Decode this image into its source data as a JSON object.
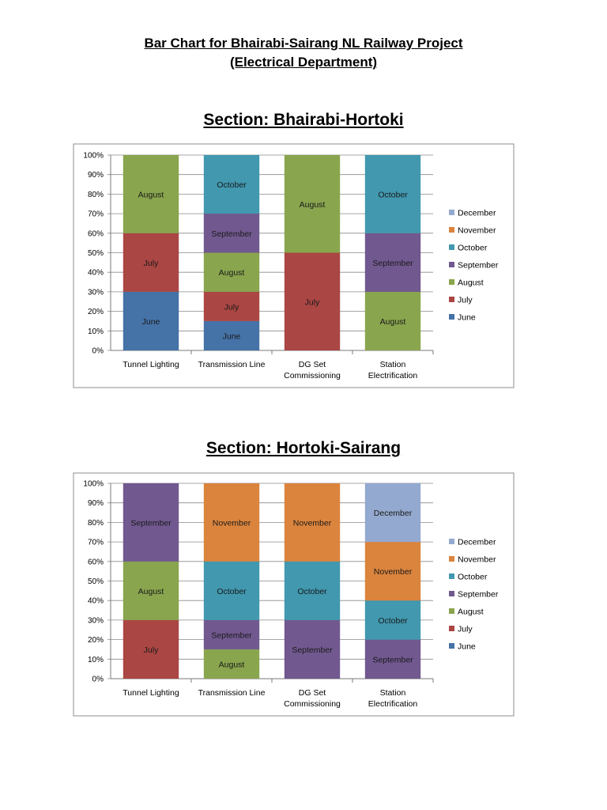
{
  "doc": {
    "title_line1": "Bar Chart for Bhairabi-Sairang NL Railway Project",
    "title_line2": "(Electrical Department)"
  },
  "month_colors": {
    "June": "#4572a7",
    "July": "#aa4643",
    "August": "#89a54e",
    "September": "#71588f",
    "October": "#4198af",
    "November": "#db843d",
    "December": "#93a9cf"
  },
  "chart_data": [
    {
      "type": "bar",
      "stacked": true,
      "title": "Section: Bhairabi-Hortoki",
      "categories": [
        "Tunnel Lighting",
        "Transmission Line",
        "DG Set Commissioning",
        "Station Electrification"
      ],
      "category_lines": [
        [
          "Tunnel Lighting"
        ],
        [
          "Transmission Line"
        ],
        [
          "DG Set",
          "Commissioning"
        ],
        [
          "Station",
          "Electrification"
        ]
      ],
      "yticks": [
        "0%",
        "10%",
        "20%",
        "30%",
        "40%",
        "50%",
        "60%",
        "70%",
        "80%",
        "90%",
        "100%"
      ],
      "ylim": [
        0,
        100
      ],
      "legend": [
        "December",
        "November",
        "October",
        "September",
        "August",
        "July",
        "June"
      ],
      "legend_position": "right",
      "segments": [
        [
          {
            "month": "June",
            "from": 0,
            "to": 30
          },
          {
            "month": "July",
            "from": 30,
            "to": 60
          },
          {
            "month": "August",
            "from": 60,
            "to": 100
          }
        ],
        [
          {
            "month": "June",
            "from": 0,
            "to": 15
          },
          {
            "month": "July",
            "from": 15,
            "to": 30
          },
          {
            "month": "August",
            "from": 30,
            "to": 50
          },
          {
            "month": "September",
            "from": 50,
            "to": 70
          },
          {
            "month": "October",
            "from": 70,
            "to": 100
          }
        ],
        [
          {
            "month": "July",
            "from": 0,
            "to": 50
          },
          {
            "month": "August",
            "from": 50,
            "to": 100
          }
        ],
        [
          {
            "month": "August",
            "from": 0,
            "to": 30
          },
          {
            "month": "September",
            "from": 30,
            "to": 60
          },
          {
            "month": "October",
            "from": 60,
            "to": 100
          }
        ]
      ]
    },
    {
      "type": "bar",
      "stacked": true,
      "title": "Section: Hortoki-Sairang",
      "categories": [
        "Tunnel Lighting",
        "Transmission Line",
        "DG Set Commissioning",
        "Station Electrification"
      ],
      "category_lines": [
        [
          "Tunnel Lighting"
        ],
        [
          "Transmission Line"
        ],
        [
          "DG Set",
          "Commissioning"
        ],
        [
          "Station",
          "Electrification"
        ]
      ],
      "yticks": [
        "0%",
        "10%",
        "20%",
        "30%",
        "40%",
        "50%",
        "60%",
        "70%",
        "80%",
        "90%",
        "100%"
      ],
      "ylim": [
        0,
        100
      ],
      "legend": [
        "December",
        "November",
        "October",
        "September",
        "August",
        "July",
        "June"
      ],
      "legend_position": "right",
      "segments": [
        [
          {
            "month": "July",
            "from": 0,
            "to": 30
          },
          {
            "month": "August",
            "from": 30,
            "to": 60
          },
          {
            "month": "September",
            "from": 60,
            "to": 100
          }
        ],
        [
          {
            "month": "August",
            "from": 0,
            "to": 15
          },
          {
            "month": "September",
            "from": 15,
            "to": 30
          },
          {
            "month": "October",
            "from": 30,
            "to": 60
          },
          {
            "month": "November",
            "from": 60,
            "to": 100
          }
        ],
        [
          {
            "month": "September",
            "from": 0,
            "to": 30
          },
          {
            "month": "October",
            "from": 30,
            "to": 60
          },
          {
            "month": "November",
            "from": 60,
            "to": 100
          }
        ],
        [
          {
            "month": "September",
            "from": 0,
            "to": 20
          },
          {
            "month": "October",
            "from": 20,
            "to": 40
          },
          {
            "month": "November",
            "from": 40,
            "to": 70
          },
          {
            "month": "December",
            "from": 70,
            "to": 100
          }
        ]
      ]
    }
  ]
}
